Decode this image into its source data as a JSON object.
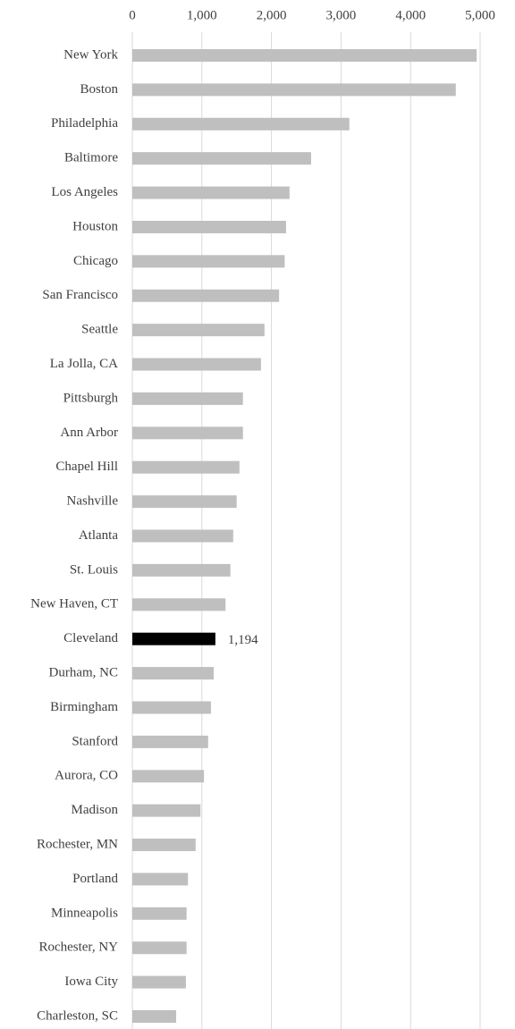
{
  "chart_data": {
    "type": "bar",
    "orientation": "horizontal",
    "categories": [
      "New York",
      "Boston",
      "Philadelphia",
      "Baltimore",
      "Los Angeles",
      "Houston",
      "Chicago",
      "San Francisco",
      "Seattle",
      "La Jolla, CA",
      "Pittsburgh",
      "Ann Arbor",
      "Chapel Hill",
      "Nashville",
      "Atlanta",
      "St. Louis",
      "New Haven, CT",
      "Cleveland",
      "Durham, NC",
      "Birmingham",
      "Stanford",
      "Aurora, CO",
      "Madison",
      "Rochester, MN",
      "Portland",
      "Minneapolis",
      "Rochester, NY",
      "Iowa City",
      "Charleston, SC"
    ],
    "values": [
      4950,
      4650,
      3120,
      2570,
      2260,
      2210,
      2190,
      2110,
      1900,
      1850,
      1590,
      1590,
      1540,
      1500,
      1450,
      1410,
      1340,
      1194,
      1170,
      1130,
      1090,
      1030,
      980,
      910,
      800,
      780,
      780,
      770,
      630
    ],
    "value_labels": [
      null,
      null,
      null,
      null,
      null,
      null,
      null,
      null,
      null,
      null,
      null,
      null,
      null,
      null,
      null,
      null,
      null,
      "1,194",
      null,
      null,
      null,
      null,
      null,
      null,
      null,
      null,
      null,
      null,
      null
    ],
    "colors": [
      "#bfbfbf",
      "#bfbfbf",
      "#bfbfbf",
      "#bfbfbf",
      "#bfbfbf",
      "#bfbfbf",
      "#bfbfbf",
      "#bfbfbf",
      "#bfbfbf",
      "#bfbfbf",
      "#bfbfbf",
      "#bfbfbf",
      "#bfbfbf",
      "#bfbfbf",
      "#bfbfbf",
      "#bfbfbf",
      "#bfbfbf",
      "#000000",
      "#bfbfbf",
      "#bfbfbf",
      "#bfbfbf",
      "#bfbfbf",
      "#bfbfbf",
      "#bfbfbf",
      "#bfbfbf",
      "#bfbfbf",
      "#bfbfbf",
      "#bfbfbf",
      "#bfbfbf"
    ],
    "xlim": [
      0,
      5000
    ],
    "xticks": [
      0,
      {
        "value": 1000,
        "label": "1,000"
      },
      {
        "value": 2000,
        "label": "2,000"
      },
      {
        "value": 3000,
        "label": "3,000"
      },
      {
        "value": 4000,
        "label": "4,000"
      },
      {
        "value": 5000,
        "label": "5,000"
      }
    ],
    "grid": true
  }
}
